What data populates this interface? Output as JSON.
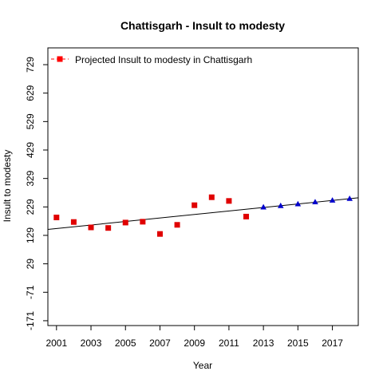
{
  "chart_data": {
    "type": "scatter",
    "title": "Chattisgarh  -  Insult to modesty",
    "xlabel": "Year",
    "ylabel": "Insult to modesty",
    "xlim": [
      2000.5,
      2018.5
    ],
    "ylim": [
      -188,
      788
    ],
    "x_ticks": [
      2001,
      2003,
      2005,
      2007,
      2009,
      2011,
      2013,
      2015,
      2017
    ],
    "y_ticks": [
      -171,
      -71,
      29,
      129,
      229,
      329,
      429,
      529,
      629,
      729
    ],
    "grid": false,
    "legend": {
      "position": "top-left",
      "entries": [
        {
          "label": "Projected  Insult to modesty  in  Chattisgarh",
          "color": "#ff0000",
          "marker": "square"
        }
      ]
    },
    "series": [
      {
        "marker": "square",
        "color": "#e00000",
        "x": [
          2001,
          2002,
          2003,
          2004,
          2005,
          2006,
          2007,
          2008,
          2009,
          2010,
          2011,
          2012
        ],
        "y": [
          192,
          176,
          157,
          155,
          174,
          177,
          134,
          166,
          235,
          263,
          250,
          195
        ]
      },
      {
        "marker": "triangle",
        "color": "#0000cc",
        "x": [
          2013,
          2014,
          2015,
          2016,
          2017,
          2018
        ],
        "y": [
          228,
          233,
          239,
          246,
          252,
          258
        ]
      }
    ],
    "trend_line": {
      "color": "#000000",
      "x": [
        2000.5,
        2018.5
      ],
      "y": [
        150,
        261
      ]
    }
  }
}
